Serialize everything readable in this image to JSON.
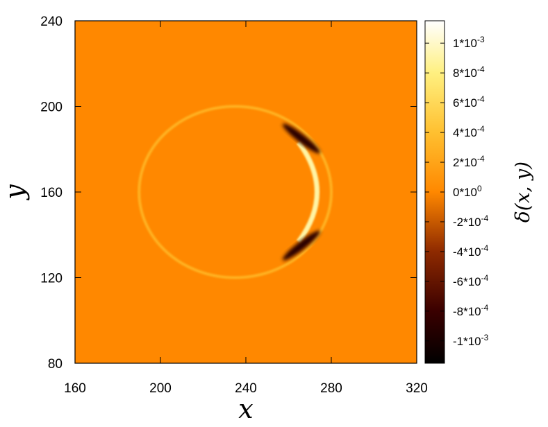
{
  "chart_data": {
    "type": "heatmap",
    "title": "",
    "xlabel": "x",
    "ylabel": "y",
    "xlim": [
      160,
      320
    ],
    "ylim": [
      80,
      240
    ],
    "x_ticks": [
      {
        "value": 160,
        "label": "160"
      },
      {
        "value": 200,
        "label": "200"
      },
      {
        "value": 240,
        "label": "240"
      },
      {
        "value": 280,
        "label": "280"
      },
      {
        "value": 320,
        "label": "320"
      }
    ],
    "y_ticks": [
      {
        "value": 80,
        "label": "80"
      },
      {
        "value": 120,
        "label": "120"
      },
      {
        "value": 160,
        "label": "160"
      },
      {
        "value": 200,
        "label": "200"
      },
      {
        "value": 240,
        "label": "240"
      }
    ],
    "colorbar": {
      "label": "δ(x, y)",
      "range": [
        -0.00115,
        0.00115
      ],
      "ticks": [
        {
          "value": 0.001,
          "label": "1*10-3",
          "base": "1*10",
          "exp": "-3"
        },
        {
          "value": 0.0008,
          "label": "8*10-4",
          "base": "8*10",
          "exp": "-4"
        },
        {
          "value": 0.0006,
          "label": "6*10-4",
          "base": "6*10",
          "exp": "-4"
        },
        {
          "value": 0.0004,
          "label": "4*10-4",
          "base": "4*10",
          "exp": "-4"
        },
        {
          "value": 0.0002,
          "label": "2*10-4",
          "base": "2*10",
          "exp": "-4"
        },
        {
          "value": 0,
          "label": "0*100",
          "base": "0*10",
          "exp": "0"
        },
        {
          "value": -0.0002,
          "label": "-2*10-4",
          "base": "-2*10",
          "exp": "-4"
        },
        {
          "value": -0.0004,
          "label": "-4*10-4",
          "base": "-4*10",
          "exp": "-4"
        },
        {
          "value": -0.0006,
          "label": "-6*10-4",
          "base": "-6*10",
          "exp": "-4"
        },
        {
          "value": -0.0008,
          "label": "-8*10-4",
          "base": "-8*10",
          "exp": "-4"
        },
        {
          "value": -0.001,
          "label": "-1*10-3",
          "base": "-1*10",
          "exp": "-3"
        }
      ],
      "colormap_stops": [
        {
          "value": -0.00115,
          "color": "#000000"
        },
        {
          "value": -0.0008,
          "color": "#3a0000"
        },
        {
          "value": -0.0004,
          "color": "#8e2a00"
        },
        {
          "value": 0,
          "color": "#ff8800"
        },
        {
          "value": 0.0004,
          "color": "#ffc030"
        },
        {
          "value": 0.0008,
          "color": "#fff080"
        },
        {
          "value": 0.00115,
          "color": "#ffffff"
        }
      ]
    },
    "background_value": 0,
    "features": {
      "ring_center": [
        235,
        160
      ],
      "ring_radius_x": 45,
      "ring_radius_y": 40,
      "ring_value": 0.0003,
      "front_tip_x": 280,
      "front_tip_value": 0.0009,
      "trailing_lobes": [
        {
          "center": [
            266,
            185
          ],
          "value": -0.0009
        },
        {
          "center": [
            266,
            135
          ],
          "value": -0.0009
        }
      ]
    }
  }
}
